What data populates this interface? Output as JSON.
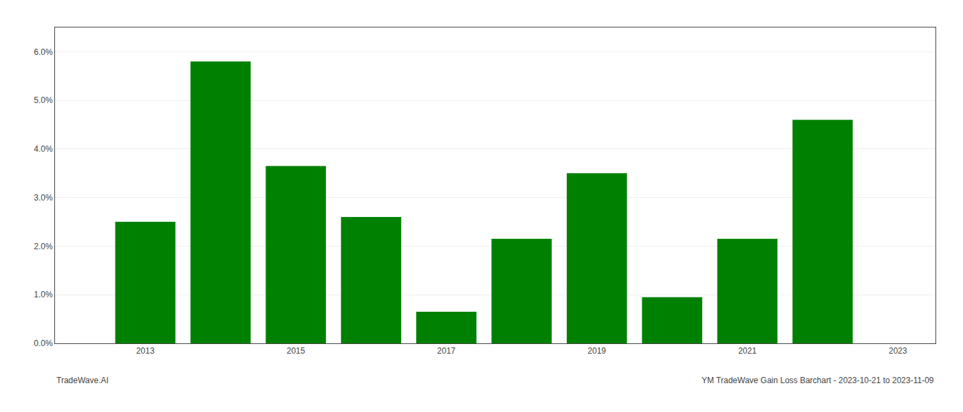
{
  "chart_data": {
    "type": "bar",
    "x": [
      2013,
      2014,
      2015,
      2016,
      2017,
      2018,
      2019,
      2020,
      2021,
      2022
    ],
    "values": [
      0.025,
      0.058,
      0.0365,
      0.026,
      0.0065,
      0.0215,
      0.035,
      0.0095,
      0.0215,
      0.046
    ],
    "color": "#008000",
    "xlim": [
      2011.8,
      2023.5
    ],
    "xticks": [
      2013,
      2015,
      2017,
      2019,
      2021,
      2023
    ],
    "ylim": [
      0,
      0.065
    ],
    "yticks": [
      {
        "value": 0.0,
        "label": "0.0%"
      },
      {
        "value": 0.01,
        "label": "1.0%"
      },
      {
        "value": 0.02,
        "label": "2.0%"
      },
      {
        "value": 0.03,
        "label": "3.0%"
      },
      {
        "value": 0.04,
        "label": "4.0%"
      },
      {
        "value": 0.05,
        "label": "5.0%"
      },
      {
        "value": 0.06,
        "label": "6.0%"
      }
    ],
    "grid": true,
    "annotations": [
      "TradeWave.AI",
      "YM TradeWave Gain Loss Barchart - 2023-10-21 to 2023-11-09"
    ]
  }
}
